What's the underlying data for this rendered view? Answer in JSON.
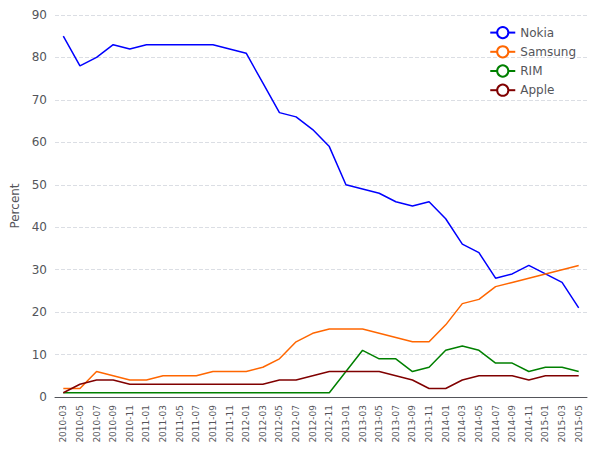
{
  "chart_data": {
    "type": "line",
    "ylabel": "Percent",
    "ylim": [
      0,
      90
    ],
    "yticks": [
      0,
      10,
      20,
      30,
      40,
      50,
      60,
      70,
      80,
      90
    ],
    "grid": true,
    "legend": "upper right",
    "categories": [
      "2010-03",
      "2010-05",
      "2010-07",
      "2010-09",
      "2010-11",
      "2011-01",
      "2011-03",
      "2011-05",
      "2011-07",
      "2011-09",
      "2011-11",
      "2012-01",
      "2012-03",
      "2012-05",
      "2012-07",
      "2012-09",
      "2012-11",
      "2013-01",
      "2013-03",
      "2013-05",
      "2013-07",
      "2013-09",
      "2013-11",
      "2014-01",
      "2014-03",
      "2014-05",
      "2014-07",
      "2014-09",
      "2014-11",
      "2015-01",
      "2015-03",
      "2015-05"
    ],
    "series": [
      {
        "name": "Nokia",
        "color": "#0000ff",
        "values": [
          85,
          78,
          80,
          83,
          82,
          83,
          83,
          83,
          83,
          83,
          82,
          81,
          74,
          67,
          66,
          63,
          59,
          50,
          49,
          48,
          46,
          45,
          46,
          42,
          36,
          34,
          28,
          29,
          31,
          29,
          27,
          21
        ]
      },
      {
        "name": "Samsung",
        "color": "#ff6600",
        "values": [
          2,
          2,
          6,
          5,
          4,
          4,
          5,
          5,
          5,
          6,
          6,
          6,
          7,
          9,
          13,
          15,
          16,
          16,
          16,
          15,
          14,
          13,
          13,
          17,
          22,
          23,
          26,
          27,
          28,
          29,
          30,
          31
        ]
      },
      {
        "name": "RIM",
        "color": "#008000",
        "values": [
          1,
          1,
          1,
          1,
          1,
          1,
          1,
          1,
          1,
          1,
          1,
          1,
          1,
          1,
          1,
          1,
          1,
          6,
          11,
          9,
          9,
          6,
          7,
          11,
          12,
          11,
          8,
          8,
          6,
          7,
          7,
          6
        ]
      },
      {
        "name": "Apple",
        "color": "#800000",
        "values": [
          1,
          3,
          4,
          4,
          3,
          3,
          3,
          3,
          3,
          3,
          3,
          3,
          3,
          4,
          4,
          5,
          6,
          6,
          6,
          6,
          5,
          4,
          2,
          2,
          4,
          5,
          5,
          5,
          4,
          5,
          5,
          5
        ]
      }
    ]
  }
}
